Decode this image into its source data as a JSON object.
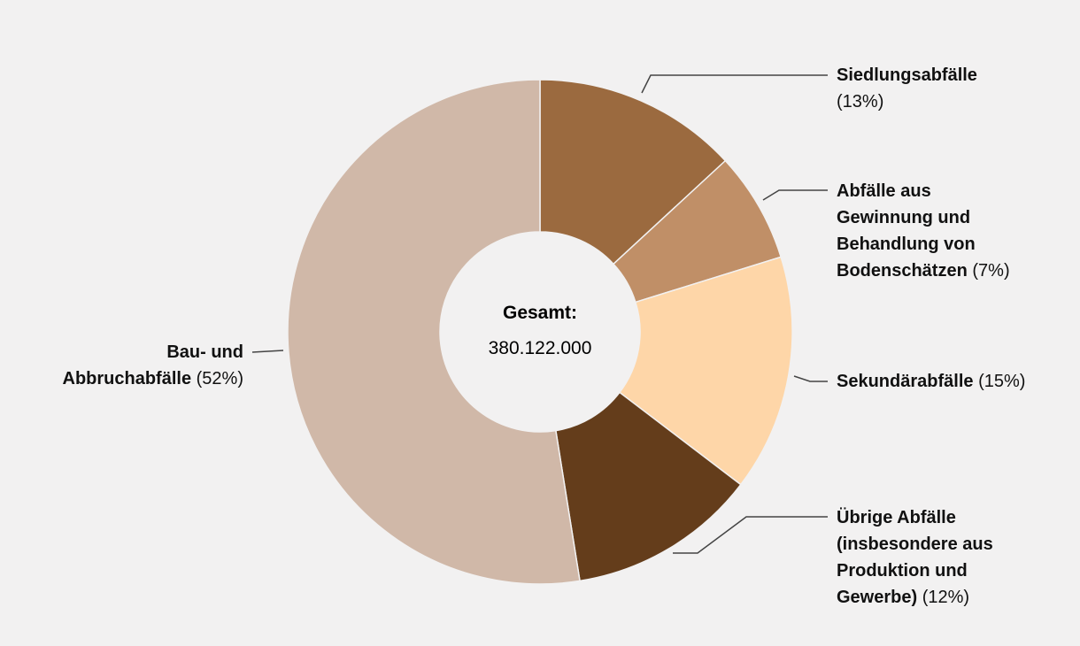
{
  "chart_data": {
    "type": "donut",
    "center_title": "Gesamt:",
    "center_value": "380.122.000",
    "categories": [
      "Siedlungsabfälle",
      "Abfälle aus Gewinnung und Behandlung von Bodenschätzen",
      "Sekundärabfälle",
      "Übrige Abfälle (insbesondere aus Produktion und Gewerbe)",
      "Bau- und Abbruchabfälle"
    ],
    "values": [
      13,
      7,
      15,
      12,
      52
    ],
    "value_labels": [
      "(13%)",
      "(7%)",
      "(15%)",
      "(12%)",
      "(52%)"
    ],
    "colors": [
      "#9b6a3f",
      "#c08f67",
      "#fed6a8",
      "#643d1b",
      "#d0b8a8"
    ]
  }
}
